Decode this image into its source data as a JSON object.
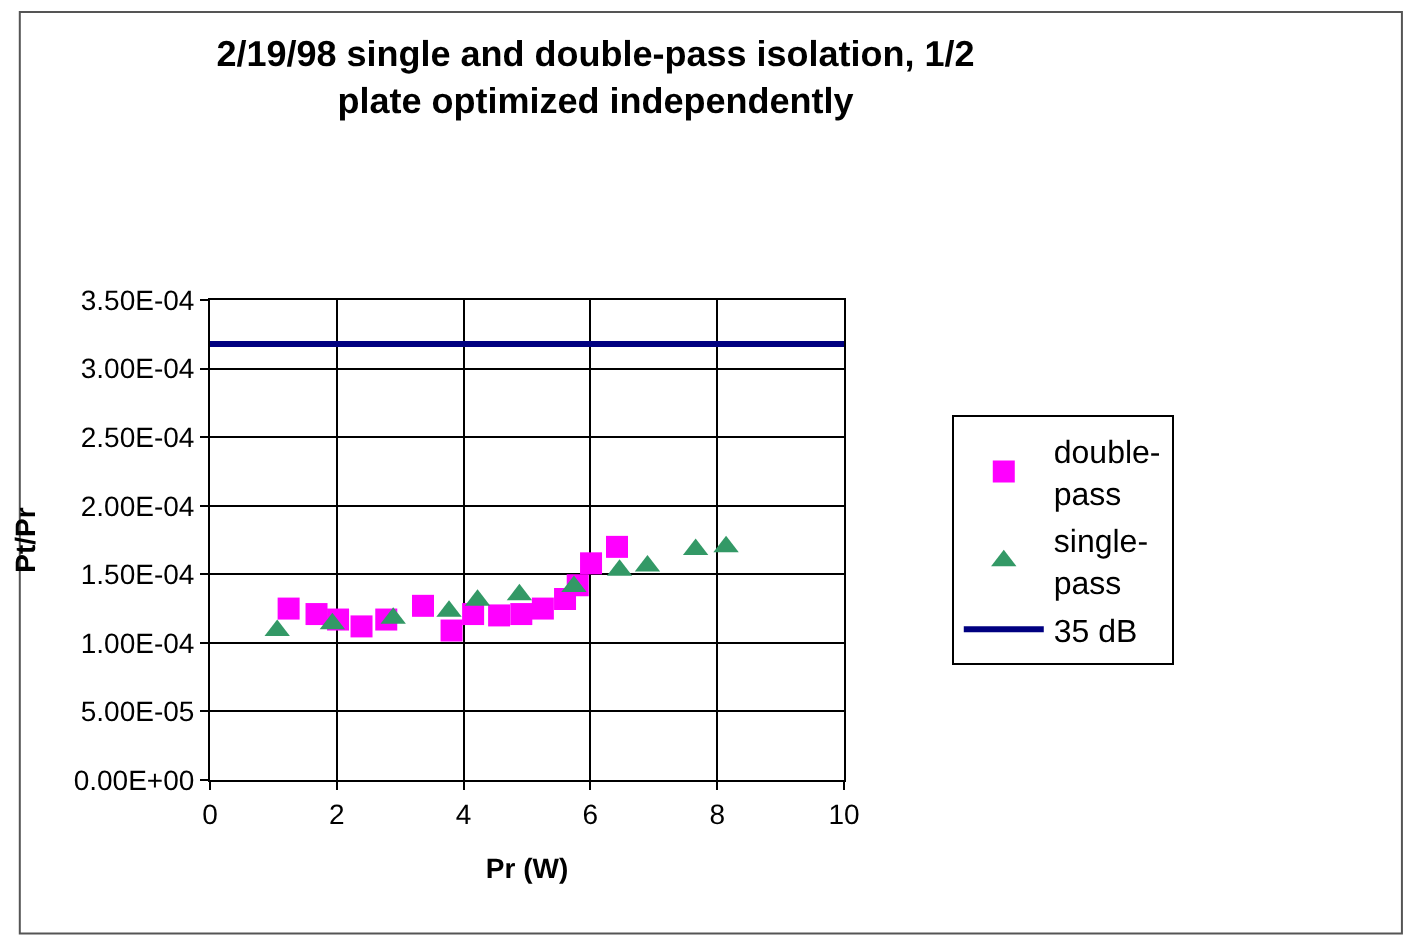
{
  "chart_data": {
    "type": "scatter",
    "title": "2/19/98 single and double-pass isolation, 1/2 plate optimized independently",
    "xlabel": "Pr (W)",
    "ylabel": "Pt/Pr",
    "xlim": [
      0,
      10
    ],
    "xticks": [
      0,
      2,
      4,
      6,
      8,
      10
    ],
    "ylim": [
      0,
      0.00035
    ],
    "yticks": [
      {
        "value": 0,
        "label": "0.00E+00"
      },
      {
        "value": 5e-05,
        "label": "5.00E-05"
      },
      {
        "value": 0.0001,
        "label": "1.00E-04"
      },
      {
        "value": 0.00015,
        "label": "1.50E-04"
      },
      {
        "value": 0.0002,
        "label": "2.00E-04"
      },
      {
        "value": 0.00025,
        "label": "2.50E-04"
      },
      {
        "value": 0.0003,
        "label": "3.00E-04"
      },
      {
        "value": 0.00035,
        "label": "3.50E-04"
      }
    ],
    "grid": true,
    "legend": "right",
    "series": [
      {
        "name": "double-pass",
        "color": "#ff00ff",
        "marker": "square",
        "x": [
          1.24,
          1.68,
          2.02,
          2.39,
          2.78,
          3.36,
          3.81,
          4.15,
          4.56,
          4.91,
          5.25,
          5.6,
          5.8,
          6.01,
          6.42
        ],
        "values": [
          0.000125,
          0.000121,
          0.000117,
          0.000112,
          0.000117,
          0.000127,
          0.000109,
          0.000121,
          0.00012,
          0.000121,
          0.000125,
          0.000132,
          0.000142,
          0.000158,
          0.00017
        ]
      },
      {
        "name": "single-pass",
        "color": "#339966",
        "marker": "triangle",
        "x": [
          1.06,
          1.93,
          2.89,
          3.77,
          4.22,
          4.88,
          5.74,
          6.46,
          6.9,
          7.66,
          8.14
        ],
        "values": [
          0.000109,
          0.000114,
          0.000118,
          0.000123,
          0.000131,
          0.000135,
          0.000141,
          0.000153,
          0.000156,
          0.000168,
          0.00017
        ]
      },
      {
        "name": "35 dB",
        "type": "line",
        "color": "#000080",
        "marker": "none",
        "line_style": "solid",
        "x": [
          0,
          10
        ],
        "values": [
          0.000318,
          0.000318
        ]
      }
    ]
  }
}
